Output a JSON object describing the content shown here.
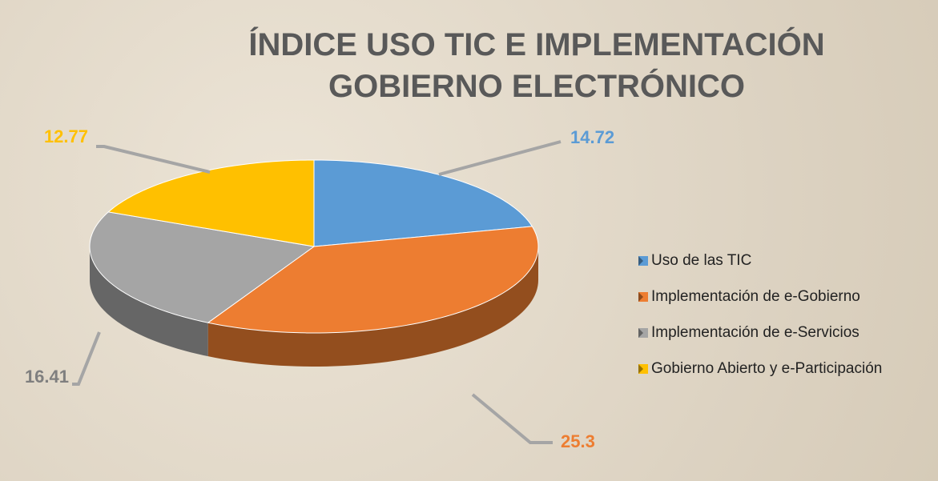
{
  "chart_data": {
    "type": "pie",
    "title": "ÍNDICE USO TIC E IMPLEMENTACIÓN GOBIERNO ELECTRÓNICO",
    "categories": [
      "Uso de las TIC",
      "Implementación de e-Gobierno",
      "Implementación de e-Servicios",
      "Gobierno Abierto y e-Participación"
    ],
    "values": [
      14.72,
      25.3,
      16.41,
      12.77
    ],
    "colors": [
      "#5b9bd5",
      "#ed7d31",
      "#a5a5a5",
      "#ffc000"
    ],
    "label_colors": [
      "#5b9bd5",
      "#ed7d31",
      "#7f7f7f",
      "#ffc000"
    ],
    "legend": "right"
  }
}
